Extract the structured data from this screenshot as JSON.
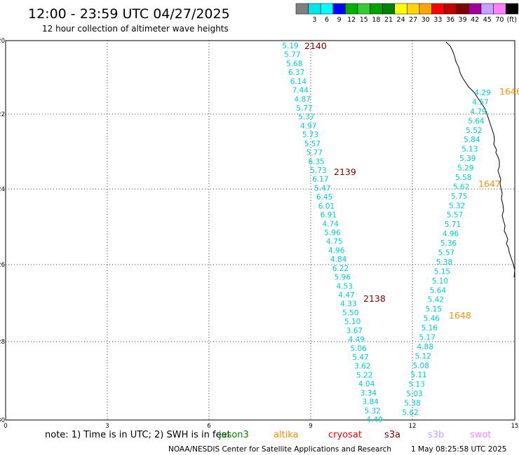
{
  "header": {
    "title": "12:00 - 23:59 UTC 04/27/2025",
    "subtitle": "12 hour collection of altimeter wave heights"
  },
  "legend": {
    "unit": "(ft)",
    "swatches": [
      {
        "label": "",
        "color": "#808080"
      },
      {
        "label": "3",
        "color": "#00e5e5"
      },
      {
        "label": "6",
        "color": "#00ffff"
      },
      {
        "label": "9",
        "color": "#0000ff"
      },
      {
        "label": "12",
        "color": "#00b000"
      },
      {
        "label": "15",
        "color": "#33cc33"
      },
      {
        "label": "18",
        "color": "#00a000"
      },
      {
        "label": "21",
        "color": "#008000"
      },
      {
        "label": "24",
        "color": "#ffff00"
      },
      {
        "label": "27",
        "color": "#ffd700"
      },
      {
        "label": "30",
        "color": "#ffa500"
      },
      {
        "label": "33",
        "color": "#ff0000"
      },
      {
        "label": "36",
        "color": "#c00000"
      },
      {
        "label": "39",
        "color": "#800000"
      },
      {
        "label": "42",
        "color": "#a000a0"
      },
      {
        "label": "45",
        "color": "#c8a0ff"
      },
      {
        "label": "70",
        "color": "#ff80ff"
      },
      {
        "label": "",
        "color": "#000000"
      }
    ]
  },
  "axes": {
    "y_ticks": [
      "20",
      "22",
      "24",
      "26",
      "28",
      "30"
    ],
    "x_ticks": [
      "0",
      "3",
      "6",
      "9",
      "12",
      "15"
    ]
  },
  "tracks": [
    {
      "color": "#00cccc",
      "values": [
        "5.19",
        "5.77",
        "5.68",
        "6.37",
        "6.14",
        "7.44",
        "4.87",
        "5.77",
        "5.37",
        "4.97",
        "5.73",
        "5.57",
        "5.77",
        "6.35",
        "5.73",
        "6.17",
        "5.47",
        "6.45",
        "6.01",
        "6.91",
        "4.74",
        "5.96",
        "4.75",
        "4.96",
        "4.84",
        "6.22",
        "5.96",
        "4.53",
        "4.47",
        "4.33",
        "5.50",
        "5.10",
        "3.67",
        "4.49",
        "5.06",
        "5.47",
        "3.62",
        "5.22",
        "4.04",
        "3.34",
        "3.84",
        "5.32",
        "4.49"
      ],
      "labels": [
        {
          "text": "2140",
          "color": "#800000"
        },
        {
          "text": "2139",
          "color": "#800000"
        },
        {
          "text": "2138",
          "color": "#800000"
        }
      ]
    },
    {
      "color": "#00cccc",
      "values": [
        "4.29",
        "4.57",
        "4.79",
        "5.64",
        "5.52",
        "5.84",
        "5.13",
        "5.39",
        "5.29",
        "5.58",
        "5.62",
        "5.75",
        "5.32",
        "5.57",
        "5.71",
        "4.96",
        "5.36",
        "5.57",
        "5.38",
        "5.15",
        "5.10",
        "5.64",
        "5.42",
        "5.15",
        "5.46",
        "5.16",
        "5.17",
        "4.88",
        "5.12",
        "5.08",
        "5.11",
        "5.13",
        "5.03",
        "5.38",
        "5.62"
      ],
      "labels": [
        {
          "text": "1646",
          "color": "#ff8c00"
        },
        {
          "text": "1647",
          "color": "#ff8c00"
        },
        {
          "text": "1648",
          "color": "#ff8c00"
        }
      ]
    }
  ],
  "footer": {
    "note": "note: 1) Time is in UTC; 2) SWH is in feet",
    "satellites": [
      {
        "name": "jason3",
        "color": "#008000"
      },
      {
        "name": "altika",
        "color": "#ff8c00"
      },
      {
        "name": "cryosat",
        "color": "#ff0000"
      },
      {
        "name": "s3a",
        "color": "#800000"
      },
      {
        "name": "s3b",
        "color": "#c8a0ff"
      },
      {
        "name": "swot",
        "color": "#ff80ff"
      }
    ],
    "credit": "NOAA/NESDIS Center for Satellite Applications and Research",
    "timestamp": "1 May 08:25:58 UTC 2025"
  }
}
